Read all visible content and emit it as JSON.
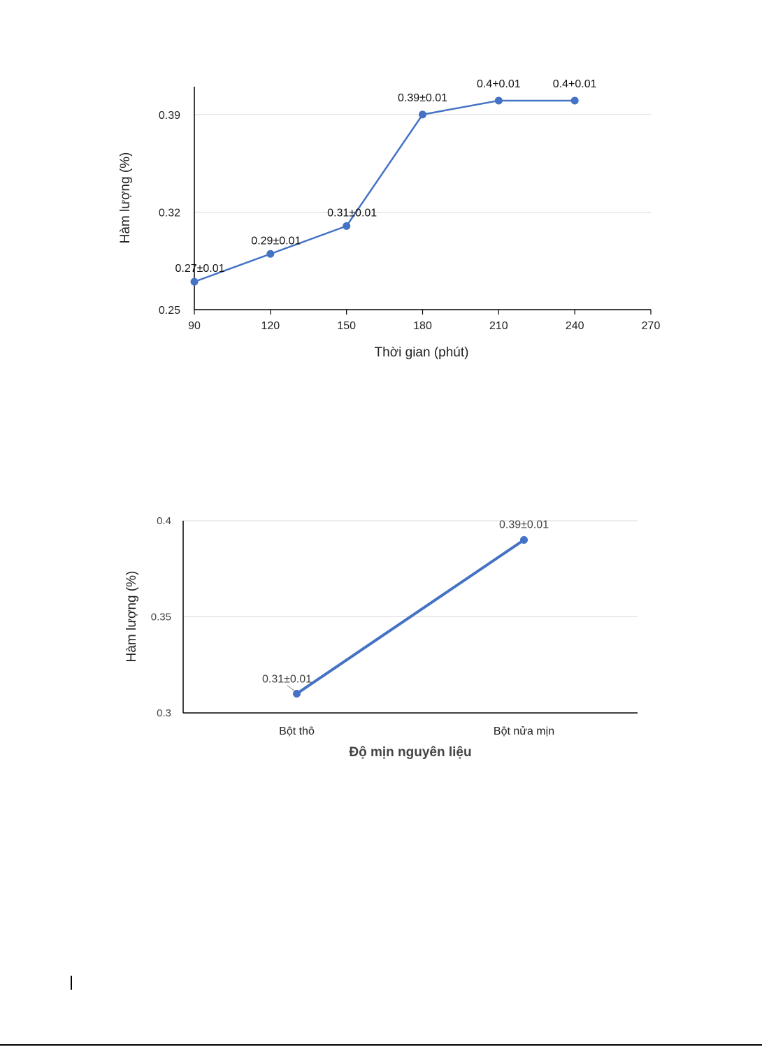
{
  "chart_data": [
    {
      "type": "line",
      "xlabel": "Thời gian (phút)",
      "ylabel": "Hàm lượng (%)",
      "x": [
        90,
        120,
        150,
        180,
        210,
        240
      ],
      "xticks": [
        "90",
        "120",
        "150",
        "180",
        "210",
        "240",
        "270"
      ],
      "xlim": [
        90,
        270
      ],
      "yticks": [
        "0.25",
        "0.32",
        "0.39"
      ],
      "ylim": [
        0.25,
        0.41
      ],
      "grid": true,
      "series": [
        {
          "values": [
            0.27,
            0.29,
            0.31,
            0.39,
            0.4,
            0.4
          ],
          "labels": [
            "0.27±0.01",
            "0.29±0.01",
            "0.31±0.01",
            "0.39±0.01",
            "0.4+0.01",
            "0.4+0.01"
          ]
        }
      ],
      "color": "#4472c4"
    },
    {
      "type": "line",
      "xlabel": "Độ mịn nguyên liệu",
      "ylabel": "Hàm lượng (%)",
      "categories": [
        "Bột thô",
        "Bột nửa mịn"
      ],
      "yticks": [
        "0.3",
        "0.35",
        "0.4"
      ],
      "ylim": [
        0.3,
        0.4
      ],
      "grid": true,
      "series": [
        {
          "values": [
            0.31,
            0.39
          ],
          "labels": [
            "0.31±0.01",
            "0.39±0.01"
          ]
        }
      ],
      "color": "#4472c4"
    }
  ]
}
